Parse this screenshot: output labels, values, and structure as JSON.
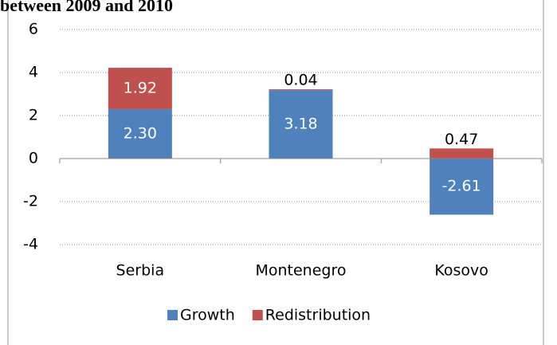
{
  "chart_data": {
    "type": "stacked_bar",
    "title": "between 2009 and 2010",
    "categories": [
      "Serbia",
      "Montenegro",
      "Kosovo"
    ],
    "series": [
      {
        "name": "Growth",
        "color": "#4f81bd",
        "values": [
          2.3,
          3.18,
          -2.61
        ],
        "value_labels": [
          "2.30",
          "3.18",
          "-2.61"
        ]
      },
      {
        "name": "Redistribution",
        "color": "#c0504d",
        "values": [
          1.92,
          0.04,
          0.47
        ],
        "value_labels": [
          "1.92",
          "0.04",
          "0.47"
        ]
      }
    ],
    "ylim": [
      -4,
      6
    ],
    "yticks": [
      -4,
      -2,
      0,
      2,
      4,
      6
    ],
    "grid": true,
    "legend": "bottom"
  }
}
